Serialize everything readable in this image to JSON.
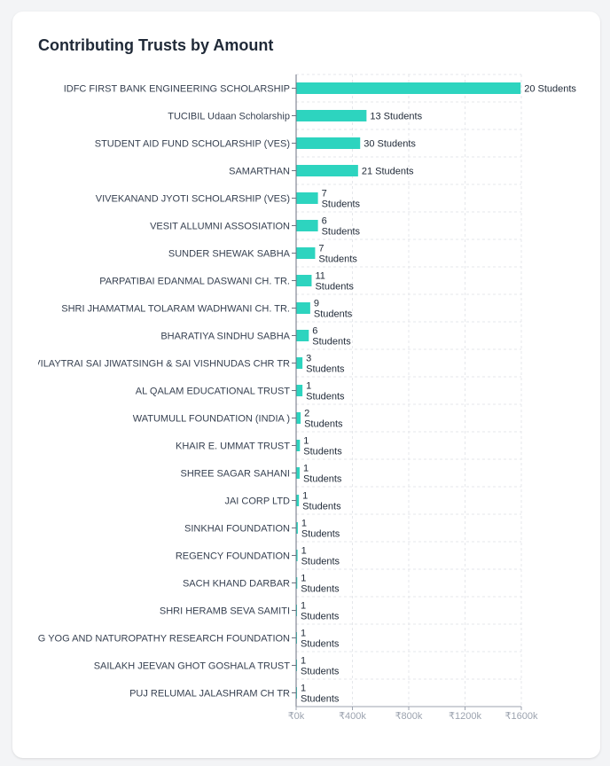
{
  "card": {
    "title": "Contributing Trusts by Amount"
  },
  "chart_data": {
    "type": "bar",
    "orientation": "horizontal",
    "title": "Contributing Trusts by Amount",
    "xlabel": "",
    "ylabel": "",
    "xlim": [
      0,
      1600000
    ],
    "x_ticks": [
      0,
      400000,
      800000,
      1200000,
      1600000
    ],
    "x_tick_labels": [
      "₹0k",
      "₹400k",
      "₹800k",
      "₹1200k",
      "₹1600k"
    ],
    "grid": "dashed",
    "bar_color": "#2dd4bf",
    "categories": [
      "IDFC FIRST BANK ENGINEERING SCHOLARSHIP",
      "TUCIBIL Udaan Scholarship",
      "STUDENT AID FUND SCHOLARSHIP (VES)",
      "SAMARTHAN",
      "VIVEKANAND JYOTI SCHOLARSHIP (VES)",
      "VESIT ALLUMNI ASSOSIATION",
      "SUNDER SHEWAK SABHA",
      "PARPATIBAI EDANMAL DASWANI CH. TR.",
      "SHRI JHAMATMAL TOLARAM WADHWANI CH. TR.",
      "BHARATIYA SINDHU SABHA",
      "I VILAYTRAI SAI JIWATSINGH & SAI VISHNUDAS CHR TR",
      "AL QALAM EDUCATIONAL TRUST",
      "WATUMULL FOUNDATION (INDIA )",
      "KHAIR E. UMMAT TRUST",
      "SHREE SAGAR SAHANI",
      "JAI CORP LTD",
      "SINKHAI FOUNDATION",
      "REGENCY FOUNDATION",
      "SACH KHAND DARBAR",
      "SHRI HERAMB SEVA SAMITI",
      "ANG YOG AND NATUROPATHY RESEARCH FOUNDATION",
      "SAILAKH JEEVAN GHOT GOSHALA TRUST",
      "PUJ RELUMAL JALASHRAM CH TR"
    ],
    "values": [
      1595000,
      500000,
      455000,
      440000,
      155000,
      155000,
      135000,
      110000,
      100000,
      90000,
      45000,
      45000,
      32000,
      27000,
      25000,
      20000,
      12000,
      10000,
      8000,
      6000,
      5000,
      4000,
      3000
    ],
    "data_labels": [
      [
        "20 Students"
      ],
      [
        "13 Students"
      ],
      [
        "30 Students"
      ],
      [
        "21 Students"
      ],
      [
        "7",
        "Students"
      ],
      [
        "6",
        "Students"
      ],
      [
        "7",
        "Students"
      ],
      [
        "11",
        "Students"
      ],
      [
        "9",
        "Students"
      ],
      [
        "6",
        "Students"
      ],
      [
        "3",
        "Students"
      ],
      [
        "1",
        "Students"
      ],
      [
        "2",
        "Students"
      ],
      [
        "1",
        "Students"
      ],
      [
        "1",
        "Students"
      ],
      [
        "1",
        "Students"
      ],
      [
        "1",
        "Students"
      ],
      [
        "1",
        "Students"
      ],
      [
        "1",
        "Students"
      ],
      [
        "1",
        "Students"
      ],
      [
        "1",
        "Students"
      ],
      [
        "1",
        "Students"
      ],
      [
        "1",
        "Students"
      ]
    ]
  }
}
